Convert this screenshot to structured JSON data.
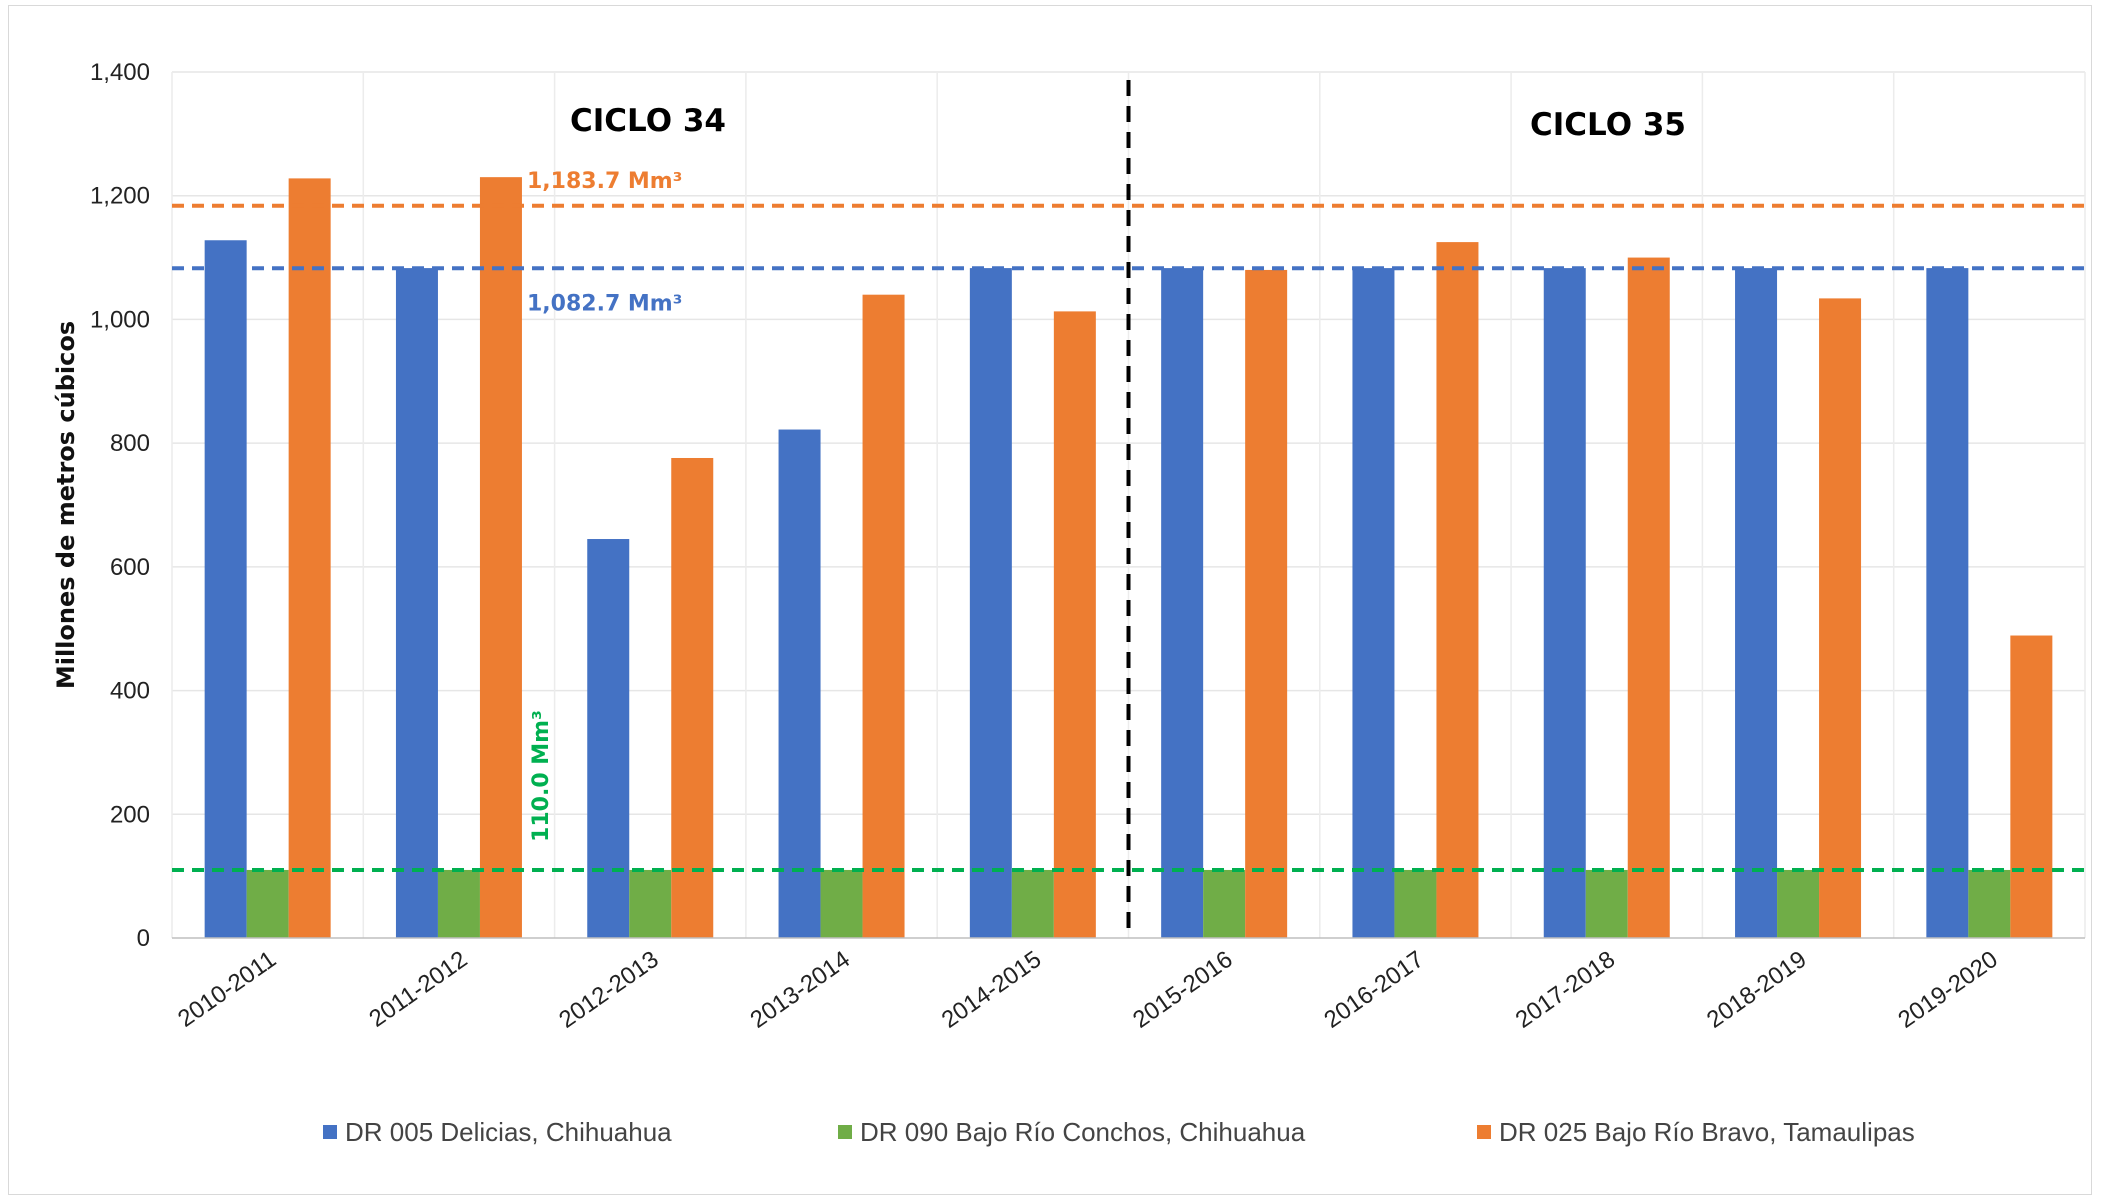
{
  "chart_data": {
    "type": "bar",
    "ylabel": "Millones de metros cúbicos",
    "ylim": [
      0,
      1400
    ],
    "yticks": [
      0,
      200,
      400,
      600,
      800,
      1000,
      1200,
      1400
    ],
    "ytick_labels": [
      "0",
      "200",
      "400",
      "600",
      "800",
      "1,000",
      "1,200",
      "1,400"
    ],
    "categories": [
      "2010-2011",
      "2011-2012",
      "2012-2013",
      "2013-2014",
      "2014-2015",
      "2015-2016",
      "2016-2017",
      "2017-2018",
      "2018-2019",
      "2019-2020"
    ],
    "grid": true,
    "legend_position": "bottom",
    "series": [
      {
        "name": "DR 005 Delicias, Chihuahua",
        "color": "#4472c4",
        "values": [
          1128,
          1083,
          645,
          822,
          1083,
          1083,
          1083,
          1083,
          1083,
          1083
        ]
      },
      {
        "name": "DR 090 Bajo Río Conchos, Chihuahua",
        "color": "#70ad47",
        "values": [
          110,
          110,
          110,
          110,
          110,
          110,
          110,
          110,
          110,
          110
        ]
      },
      {
        "name": "DR 025 Bajo Río Bravo, Tamaulipas",
        "color": "#ed7d31",
        "values": [
          1228,
          1230,
          776,
          1040,
          1013,
          1080,
          1125,
          1100,
          1034,
          489
        ]
      }
    ],
    "reference_lines": [
      {
        "value": 1183.7,
        "label": "1,183.7 Mm³",
        "color": "#ed7d31"
      },
      {
        "value": 1082.7,
        "label": "1,082.7 Mm³",
        "color": "#4472c4"
      },
      {
        "value": 110.0,
        "label": "110.0 Mm³",
        "color": "#00b050"
      }
    ],
    "cycle_divider_after_category": "2014-2015",
    "annotations": [
      "CICLO 34",
      "CICLO 35"
    ]
  }
}
